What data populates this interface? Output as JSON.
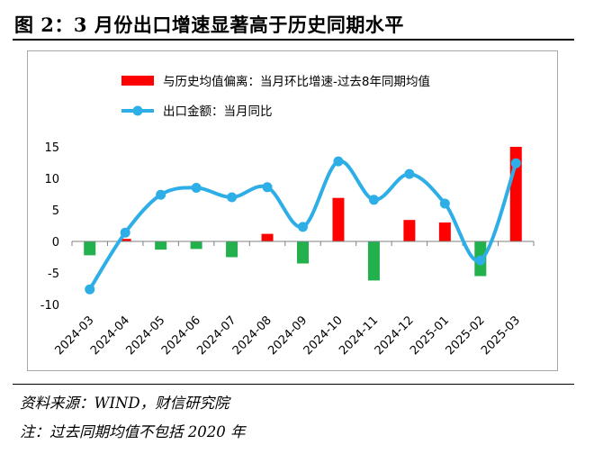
{
  "title": "图 2：3 月份出口增速显著高于历史同期水平",
  "source_note": "资料来源：WIND，财信研究院",
  "footnote": "注：过去同期均值不包括 2020 年",
  "colors": {
    "bar_positive": "#ff0000",
    "bar_negative": "#22b14c",
    "line": "#2eaee6"
  },
  "chart_data": {
    "type": "bar",
    "categories": [
      "2024-03",
      "2024-04",
      "2024-05",
      "2024-06",
      "2024-07",
      "2024-08",
      "2024-09",
      "2024-10",
      "2024-11",
      "2024-12",
      "2025-01",
      "2025-02",
      "2025-03"
    ],
    "series": [
      {
        "name": "与历史均值偏离：当月环比增速-过去8年同期均值",
        "type": "bar",
        "values": [
          -2.2,
          0.4,
          -1.3,
          -1.2,
          -2.5,
          1.2,
          -3.5,
          6.9,
          -6.2,
          3.4,
          3.0,
          -5.5,
          15.0
        ]
      },
      {
        "name": "出口金额：当月同比",
        "type": "line",
        "values": [
          -7.6,
          1.4,
          7.4,
          8.5,
          7.0,
          8.6,
          2.3,
          12.7,
          6.6,
          10.7,
          6.0,
          -3.0,
          12.4
        ]
      }
    ],
    "ylim": [
      -10,
      15
    ],
    "yticks": [
      -10,
      -5,
      0,
      5,
      10,
      15
    ],
    "legend_position": "top",
    "grid": false
  }
}
